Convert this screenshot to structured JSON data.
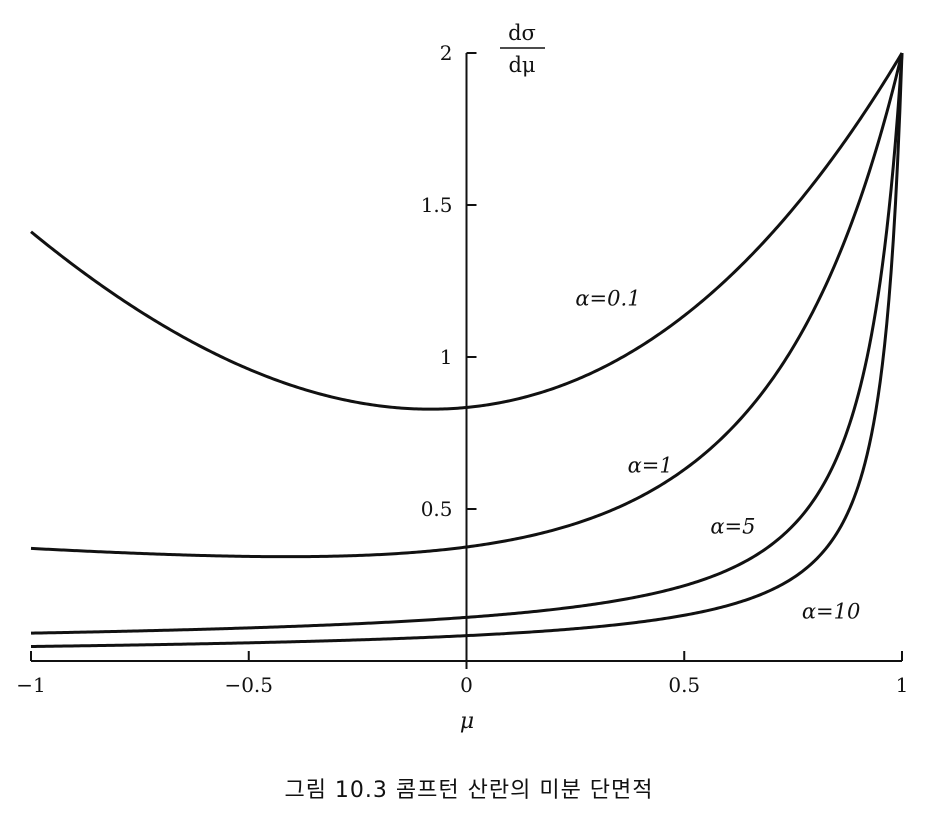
{
  "chart_data": {
    "type": "line",
    "title": "",
    "caption": "그림 10.3 콤프턴 산란의 미분 단면적",
    "xlabel": "μ",
    "ylabel_numerator": "dσ",
    "ylabel_denominator": "dμ",
    "xlim": [
      -1,
      1
    ],
    "ylim": [
      0,
      2
    ],
    "x_ticks": [
      {
        "value": -1,
        "label": "−1"
      },
      {
        "value": -0.5,
        "label": "−0.5"
      },
      {
        "value": 0,
        "label": "0"
      },
      {
        "value": 0.5,
        "label": "0.5"
      },
      {
        "value": 1,
        "label": "1"
      }
    ],
    "y_ticks": [
      {
        "value": 0.5,
        "label": "0.5"
      },
      {
        "value": 1,
        "label": "1"
      },
      {
        "value": 1.5,
        "label": "1.5"
      },
      {
        "value": 2,
        "label": "2"
      }
    ],
    "grid": false,
    "legend": "none",
    "series": [
      {
        "name": "α=0.1",
        "alpha": 0.1,
        "label_x": 0.25,
        "label_y": 1.17
      },
      {
        "name": "α=1",
        "alpha": 1,
        "label_x": 0.37,
        "label_y": 0.62
      },
      {
        "name": "α=5",
        "alpha": 5,
        "label_x": 0.56,
        "label_y": 0.42
      },
      {
        "name": "α=10",
        "alpha": 10,
        "label_x": 0.77,
        "label_y": 0.14
      }
    ]
  }
}
